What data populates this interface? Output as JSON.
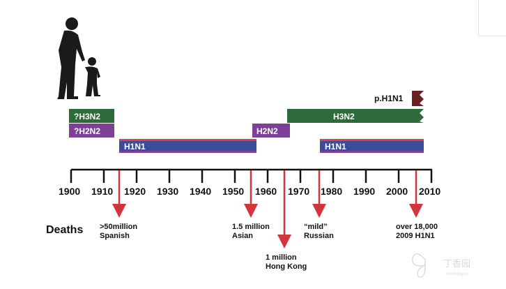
{
  "timeline": {
    "years": [
      "1900",
      "1910",
      "1920",
      "1930",
      "1940",
      "1950",
      "1960",
      "1970",
      "1980",
      "1990",
      "2000",
      "2010"
    ]
  },
  "subtypes": {
    "h3n2_early": "?H3N2",
    "h2n2_early": "?H2N2",
    "h1n1_1918": "H1N1",
    "h2n2_1957": "H2N2",
    "h3n2_1968": "H3N2",
    "h1n1_1977": "H1N1",
    "ph1n1": "p.H1N1"
  },
  "deaths": {
    "title": "Deaths",
    "spanish": {
      "count": ">50million",
      "name": "Spanish"
    },
    "asian": {
      "count": "1.5 million",
      "name": "Asian"
    },
    "hongkong": {
      "count": "1 million",
      "name": "Hong Kong"
    },
    "russian": {
      "count": "“mild”",
      "name": "Russian"
    },
    "h1n1_2009": {
      "count": "over 18,000",
      "name": "2009 H1N1"
    }
  },
  "watermark": {
    "text": "丁香园",
    "url": "www.dxy.cn"
  },
  "colors": {
    "green": "#2e6b3a",
    "purple": "#7e3f97",
    "blue": "#3d4c9a",
    "red_stripe": "#d0454e",
    "arrow": "#d2353b",
    "ph1n1": "#6b1f1f",
    "axis": "#111111"
  },
  "icons": [
    "adult-child-silhouette",
    "butterfly-logo-icon"
  ]
}
